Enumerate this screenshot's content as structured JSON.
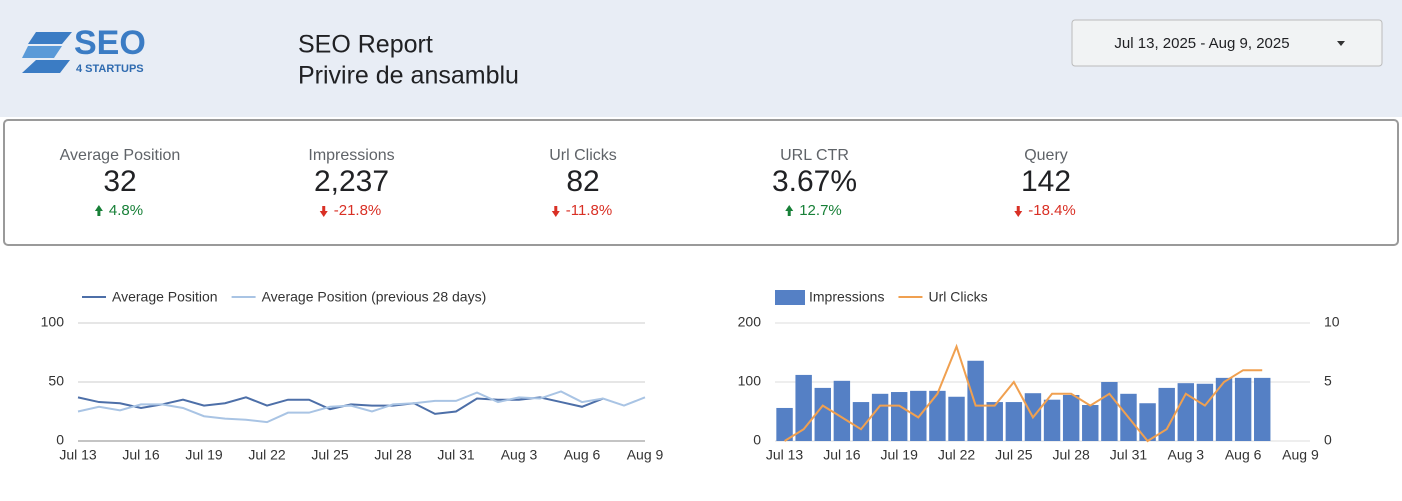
{
  "header": {
    "logo": {
      "text": "SEO",
      "subtext": "4 STARTUPS"
    },
    "title": "SEO Report",
    "subtitle": "Privire de ansamblu",
    "date_range": "Jul 13, 2025 - Aug 9, 2025"
  },
  "scorecards": [
    {
      "label": "Average Position",
      "value": "32",
      "change": "4.8%",
      "trend": "up"
    },
    {
      "label": "Impressions",
      "value": "2,237",
      "change": "-21.8%",
      "trend": "down"
    },
    {
      "label": "Url Clicks",
      "value": "82",
      "change": "-11.8%",
      "trend": "down"
    },
    {
      "label": "URL CTR",
      "value": "3.67%",
      "change": "12.7%",
      "trend": "up"
    },
    {
      "label": "Query",
      "value": "142",
      "change": "-18.4%",
      "trend": "down"
    }
  ],
  "chart_data": [
    {
      "type": "line",
      "categories": [
        "Jul 13",
        null,
        null,
        "Jul 16",
        null,
        null,
        "Jul 19",
        null,
        null,
        "Jul 22",
        null,
        null,
        "Jul 25",
        null,
        null,
        "Jul 28",
        null,
        null,
        "Jul 31",
        null,
        null,
        "Aug 3",
        null,
        null,
        "Aug 6",
        null,
        null,
        "Aug 9"
      ],
      "series": [
        {
          "name": "Average Position",
          "color": "#4d6fa8",
          "values": [
            37,
            33,
            32,
            28,
            31,
            35,
            30,
            32,
            37,
            30,
            35,
            35,
            27,
            31,
            30,
            30,
            32,
            23,
            25,
            36,
            35,
            35,
            37,
            33,
            29,
            36,
            null,
            null
          ]
        },
        {
          "name": "Average Position (previous 28 days)",
          "color": "#a9c4e4",
          "values": [
            25,
            29,
            26,
            31,
            31,
            28,
            21,
            19,
            18,
            16,
            24,
            24,
            29,
            30,
            25,
            31,
            32,
            34,
            34,
            41,
            33,
            37,
            36,
            42,
            33,
            36,
            30,
            37
          ]
        }
      ],
      "ylim": [
        0,
        100
      ],
      "yticks": [
        0,
        50,
        100
      ],
      "grid": true,
      "legend": "top"
    },
    {
      "type": "combo",
      "categories": [
        "Jul 13",
        null,
        null,
        "Jul 16",
        null,
        null,
        "Jul 19",
        null,
        null,
        "Jul 22",
        null,
        null,
        "Jul 25",
        null,
        null,
        "Jul 28",
        null,
        null,
        "Jul 31",
        null,
        null,
        "Aug 3",
        null,
        null,
        "Aug 6",
        null,
        null,
        "Aug 9"
      ],
      "series": [
        {
          "name": "Impressions",
          "type": "bar",
          "color": "#5580c5",
          "values": [
            56,
            112,
            90,
            102,
            66,
            80,
            83,
            85,
            85,
            75,
            136,
            66,
            66,
            81,
            70,
            78,
            61,
            100,
            80,
            64,
            90,
            98,
            97,
            107,
            107,
            107,
            null,
            null
          ]
        },
        {
          "name": "Url Clicks",
          "type": "line",
          "axis": "y2",
          "color": "#f0a050",
          "values": [
            0,
            1,
            3,
            2,
            1,
            3,
            3,
            2,
            4,
            8,
            3,
            3,
            5,
            2,
            4,
            4,
            3,
            4,
            2,
            0,
            1,
            4,
            3,
            5,
            6,
            6,
            null,
            null
          ]
        }
      ],
      "ylim": [
        0,
        200
      ],
      "yticks": [
        0,
        100,
        200
      ],
      "y2lim": [
        0,
        10
      ],
      "y2ticks": [
        0,
        5,
        10
      ],
      "grid": true,
      "legend": "top"
    }
  ]
}
